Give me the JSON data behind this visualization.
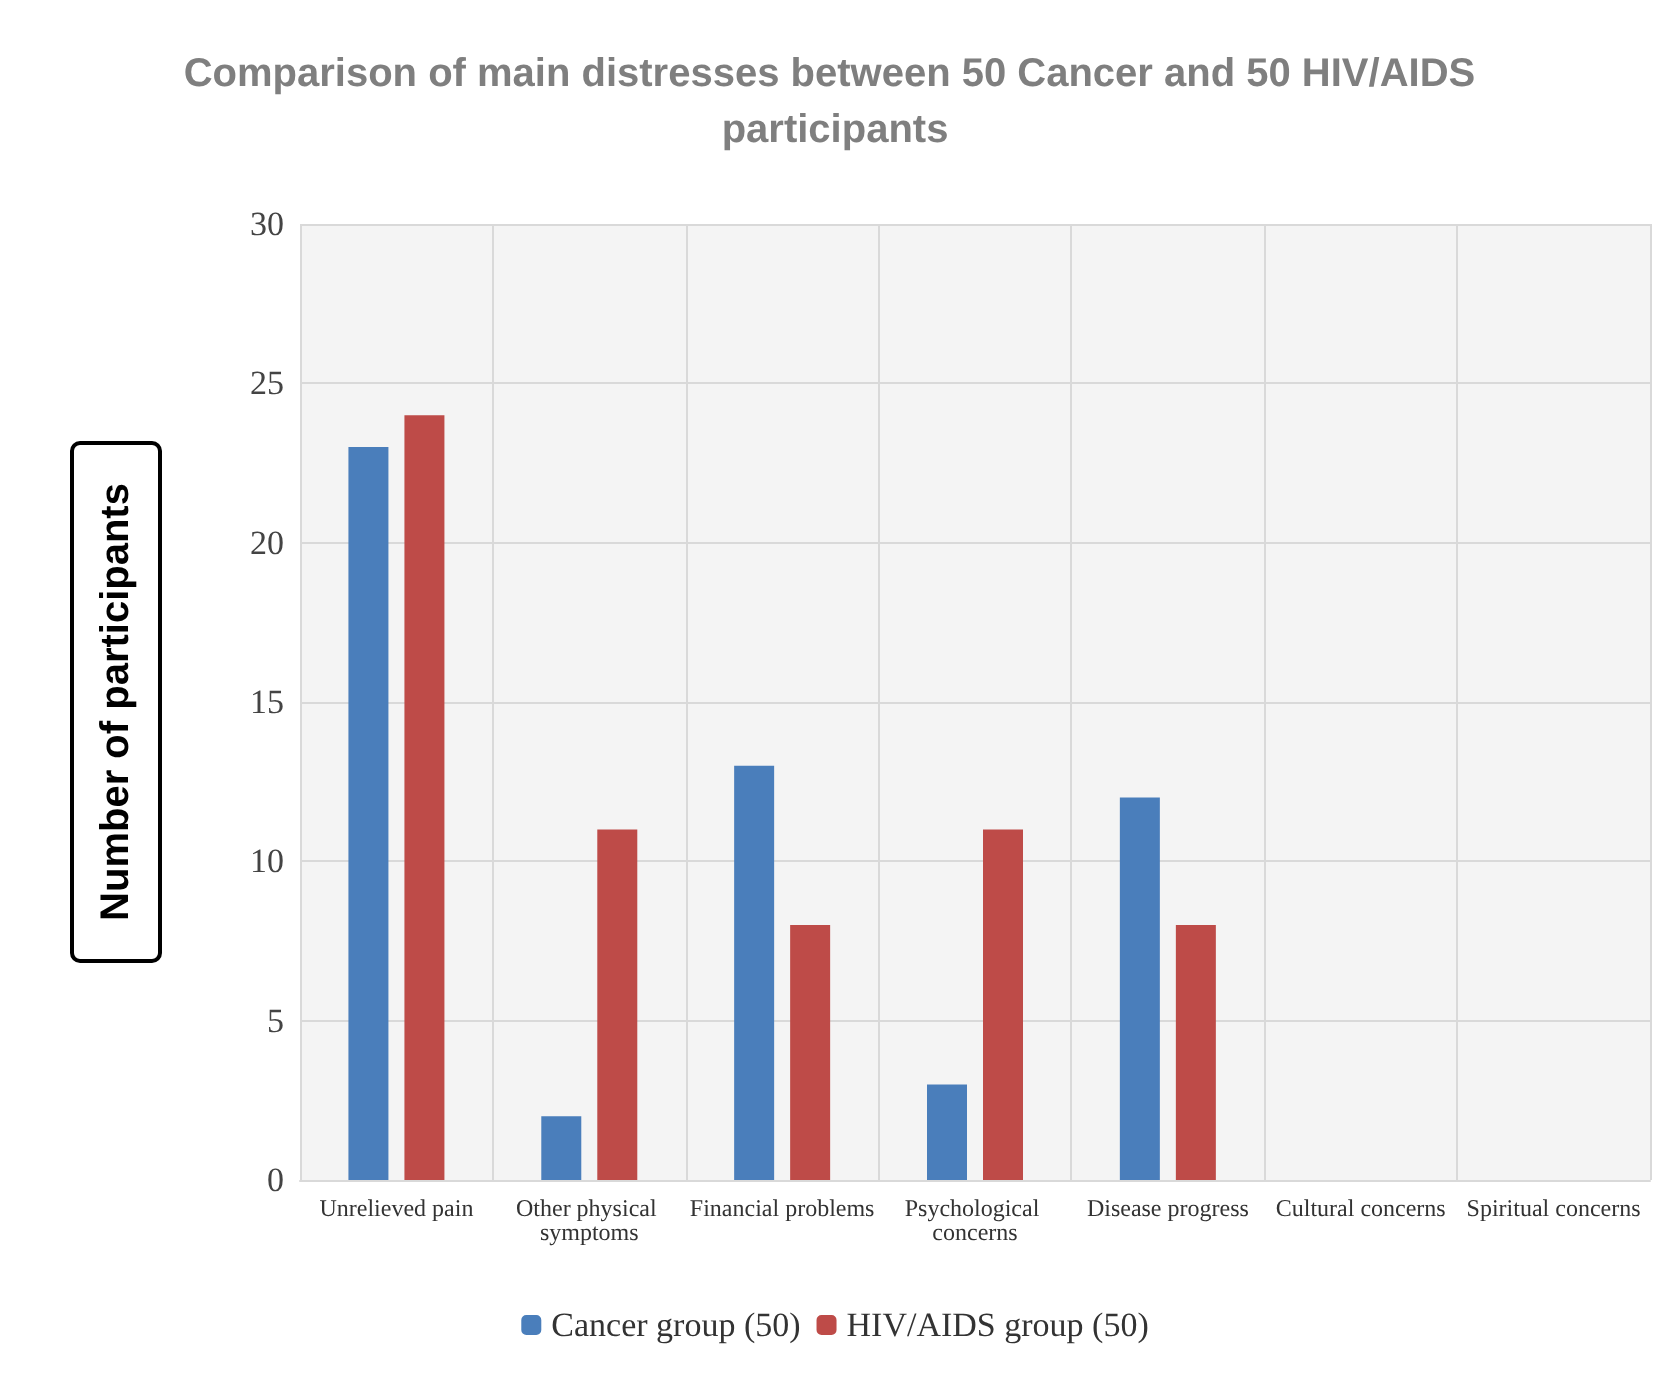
{
  "chart_data": {
    "type": "bar",
    "title": "Comparison of main distresses between 50 Cancer and 50 HIV/AIDS participants",
    "ylabel": "Number of participants",
    "categories": [
      "Unrelieved pain",
      "Other physical symptoms",
      "Financial problems",
      "Psychological concerns",
      "Disease progress",
      "Cultural concerns",
      "Spiritual concerns"
    ],
    "series": [
      {
        "name": "Cancer group (50)",
        "color": "#4a7ebb",
        "values": [
          23,
          2,
          13,
          3,
          12,
          0,
          0
        ]
      },
      {
        "name": "HIV/AIDS group (50)",
        "color": "#be4b48",
        "values": [
          24,
          11,
          8,
          11,
          8,
          0,
          0
        ]
      }
    ],
    "ylim": [
      0,
      30
    ],
    "yticks": [
      0,
      5,
      10,
      15,
      20,
      25,
      30
    ],
    "grid": true,
    "legend": "bottom"
  }
}
